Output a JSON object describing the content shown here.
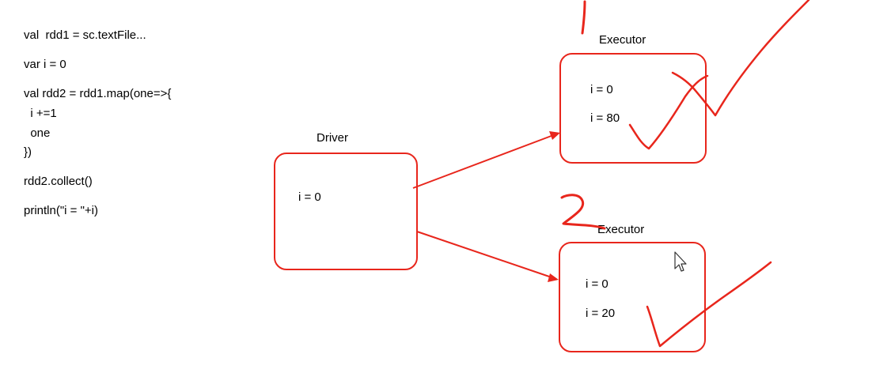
{
  "code": {
    "lines": [
      "val  rdd1 = sc.textFile...",
      "var i = 0",
      "val rdd2 = rdd1.map(one=>{",
      "  i +=1",
      "  one",
      "})",
      "rdd2.collect()",
      "println(\"i = \"+i)"
    ]
  },
  "driver": {
    "label": "Driver",
    "values": [
      "i = 0"
    ]
  },
  "executors": [
    {
      "label": "Executor",
      "values": [
        "i = 0",
        "i = 80"
      ]
    },
    {
      "label": "Executor",
      "values": [
        "i = 0",
        "i = 20"
      ]
    }
  ],
  "colors": {
    "annotation": "#e8261c",
    "text": "#000000",
    "background": "#ffffff"
  },
  "icons": {
    "cursor": "mouse-pointer-icon"
  }
}
